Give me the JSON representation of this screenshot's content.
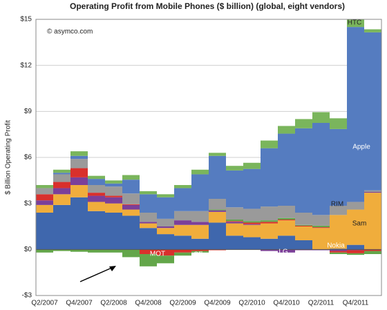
{
  "chart_data": {
    "type": "stacked-bar",
    "title": "Operating Profit from Mobile Phones ($ billion) (global, eight vendors)",
    "y_label": "$ Billion Operating Profit",
    "annotation": "© asymco.com",
    "categories": [
      "Q2/2007",
      null,
      "Q4/2007",
      null,
      "Q2/2008",
      null,
      "Q4/2008",
      null,
      "Q2/2009",
      null,
      "Q4/2009",
      null,
      "Q2/2010",
      null,
      "Q4/2010",
      null,
      "Q2/2011",
      null,
      "Q4/2011",
      null
    ],
    "ylim": [
      -3,
      15
    ],
    "yticks": [
      {
        "value": -3,
        "label": "-$3"
      },
      {
        "value": 0,
        "label": "$0"
      },
      {
        "value": 3,
        "label": "$3"
      },
      {
        "value": 6,
        "label": "$6"
      },
      {
        "value": 9,
        "label": "$9"
      },
      {
        "value": 12,
        "label": "$12"
      },
      {
        "value": 15,
        "label": "$15"
      }
    ],
    "grid": true,
    "series": [
      {
        "name": "Nokia",
        "color": "#3f67ad",
        "values": [
          2.4,
          2.9,
          3.4,
          2.5,
          2.4,
          2.2,
          1.4,
          1.0,
          0.9,
          0.7,
          1.75,
          0.9,
          0.8,
          0.7,
          0.9,
          0.6,
          0,
          0.05,
          0.3,
          0
        ]
      },
      {
        "name": "Sam",
        "color": "#f0ad3c",
        "values": [
          0.5,
          0.7,
          0.8,
          0.6,
          0.6,
          0.4,
          0.3,
          0.4,
          0.7,
          0.9,
          0.7,
          0.8,
          0.8,
          1.0,
          1.0,
          0.9,
          1.4,
          2.2,
          2.3,
          3.7
        ]
      },
      {
        "name": "LG",
        "color": "#7b3f99",
        "values": [
          0.3,
          0.4,
          0.5,
          0.4,
          0.4,
          0.3,
          0.1,
          0.1,
          0.3,
          0.2,
          0.1,
          0.1,
          0.05,
          -0.1,
          -0.2,
          -0.05,
          -0.05,
          -0.1,
          -0.05,
          0.05
        ]
      },
      {
        "name": "SE",
        "color": "#d9302c",
        "values": [
          0.4,
          0.4,
          0.6,
          0.2,
          0.1,
          0.05,
          -0.3,
          -0.4,
          -0.2,
          -0.1,
          -0.05,
          0.05,
          0.1,
          0.1,
          0.05,
          0.05,
          0.05,
          -0.1,
          -0.2,
          -0.1
        ]
      },
      {
        "name": "MOT",
        "color": "#63a64a",
        "values": [
          -0.2,
          -0.1,
          -0.15,
          -0.2,
          -0.2,
          -0.5,
          -0.8,
          -0.5,
          -0.2,
          -0.1,
          0.05,
          0.1,
          0.1,
          0.1,
          0.1,
          0.05,
          0.1,
          -0.1,
          -0.1,
          -0.2
        ]
      },
      {
        "name": "RIM",
        "color": "#9a9a9a",
        "values": [
          0.4,
          0.5,
          0.6,
          0.5,
          0.6,
          0.7,
          0.6,
          0.5,
          0.6,
          0.7,
          0.7,
          0.8,
          0.8,
          0.9,
          0.8,
          0.8,
          0.7,
          0.6,
          0.5,
          0.1
        ]
      },
      {
        "name": "Apple",
        "color": "#557cc0",
        "values": [
          0,
          0.1,
          0.2,
          0.4,
          0.2,
          0.9,
          1.2,
          1.4,
          1.5,
          2.4,
          2.8,
          2.4,
          2.6,
          3.8,
          4.7,
          5.5,
          6.0,
          5.0,
          11.4,
          10.3
        ]
      },
      {
        "name": "HTC",
        "color": "#7ab55c",
        "values": [
          0.2,
          0.2,
          0.3,
          0.2,
          0.2,
          0.3,
          0.2,
          0.2,
          0.2,
          0.3,
          0.2,
          0.3,
          0.4,
          0.5,
          0.5,
          0.6,
          0.7,
          0.7,
          0.5,
          0.2
        ]
      }
    ]
  }
}
